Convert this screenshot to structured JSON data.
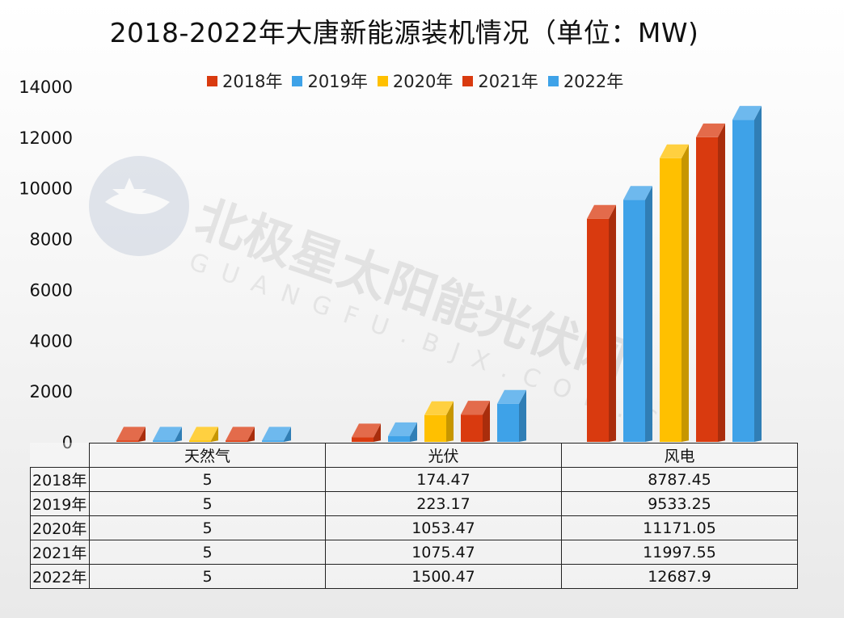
{
  "chart_data": {
    "type": "bar",
    "title": "2018-2022年大唐新能源装机情况（单位：MW)",
    "categories": [
      "天然气",
      "光伏",
      "风电"
    ],
    "series": [
      {
        "name": "2018年",
        "color": "#D93A0F",
        "values": [
          5,
          174.47,
          8787.45
        ],
        "labels": [
          "5",
          "174.47",
          "8787.45"
        ]
      },
      {
        "name": "2019年",
        "color": "#3EA2E8",
        "values": [
          5,
          223.17,
          9533.25
        ],
        "labels": [
          "5",
          "223.17",
          "9533.25"
        ]
      },
      {
        "name": "2020年",
        "color": "#FFC000",
        "values": [
          5,
          1053.47,
          11171.05
        ],
        "labels": [
          "5",
          "1053.47",
          "11171.05"
        ]
      },
      {
        "name": "2021年",
        "color": "#D93A0F",
        "values": [
          5,
          1075.47,
          11997.55
        ],
        "labels": [
          "5",
          "1075.47",
          "11997.55"
        ]
      },
      {
        "name": "2022年",
        "color": "#3EA2E8",
        "values": [
          5,
          1500.47,
          12687.9
        ],
        "labels": [
          "5",
          "1500.47",
          "12687.9"
        ]
      }
    ],
    "ylim": [
      0,
      14000
    ],
    "yticks": [
      0,
      2000,
      4000,
      6000,
      8000,
      10000,
      12000,
      14000
    ],
    "legend": "top",
    "grid": false
  },
  "watermark": {
    "main": "北极星太阳能光伏网",
    "sub": "GUANGFU.BJX.COM.CN"
  }
}
